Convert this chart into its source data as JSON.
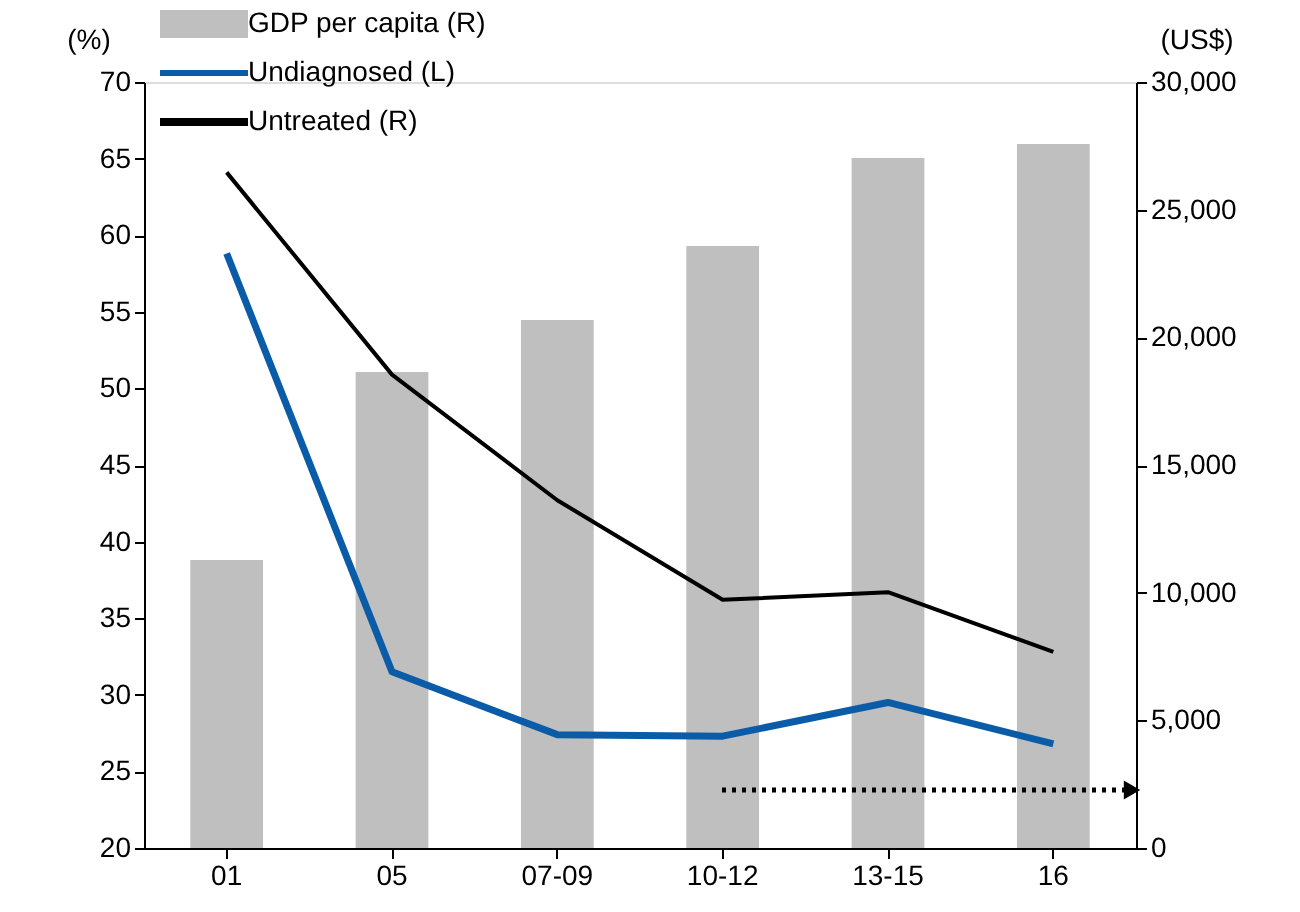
{
  "chart_data": {
    "type": "bar",
    "categories": [
      "01",
      "05",
      "07-09",
      "10-12",
      "13-15",
      "16"
    ],
    "ylabel": "(%)",
    "y2label": "(US$)",
    "series": [
      {
        "name": "GDP per capita (R)",
        "axis": "y2",
        "color": "#bfbfbf",
        "values": [
          11280,
          18640,
          20680,
          23580,
          27020,
          27570
        ]
      },
      {
        "name": "Undiagnosed (L)",
        "type": "line",
        "color": "#0b5ca8",
        "values": [
          58.8,
          31.5,
          27.4,
          27.3,
          29.5,
          26.8
        ]
      },
      {
        "name": "Untreated (R)",
        "type": "line",
        "color": "#000000",
        "values": [
          64.1,
          50.9,
          42.7,
          36.2,
          36.7,
          32.8
        ]
      }
    ],
    "ylim": [
      20,
      70
    ],
    "yticks": [
      20,
      25,
      30,
      35,
      40,
      45,
      50,
      55,
      60,
      65,
      70
    ],
    "y2lim": [
      0,
      30000
    ],
    "y2ticks": [
      0,
      {
        "value": 5000,
        "label": "5,000"
      },
      {
        "value": 10000,
        "label": "10,000"
      },
      {
        "value": 15000,
        "label": "15,000"
      },
      {
        "value": 20000,
        "label": "20,000"
      },
      {
        "value": 25000,
        "label": "25,000"
      },
      {
        "value": 30000,
        "label": "30,000"
      }
    ],
    "grid": false,
    "legend": "top left"
  }
}
